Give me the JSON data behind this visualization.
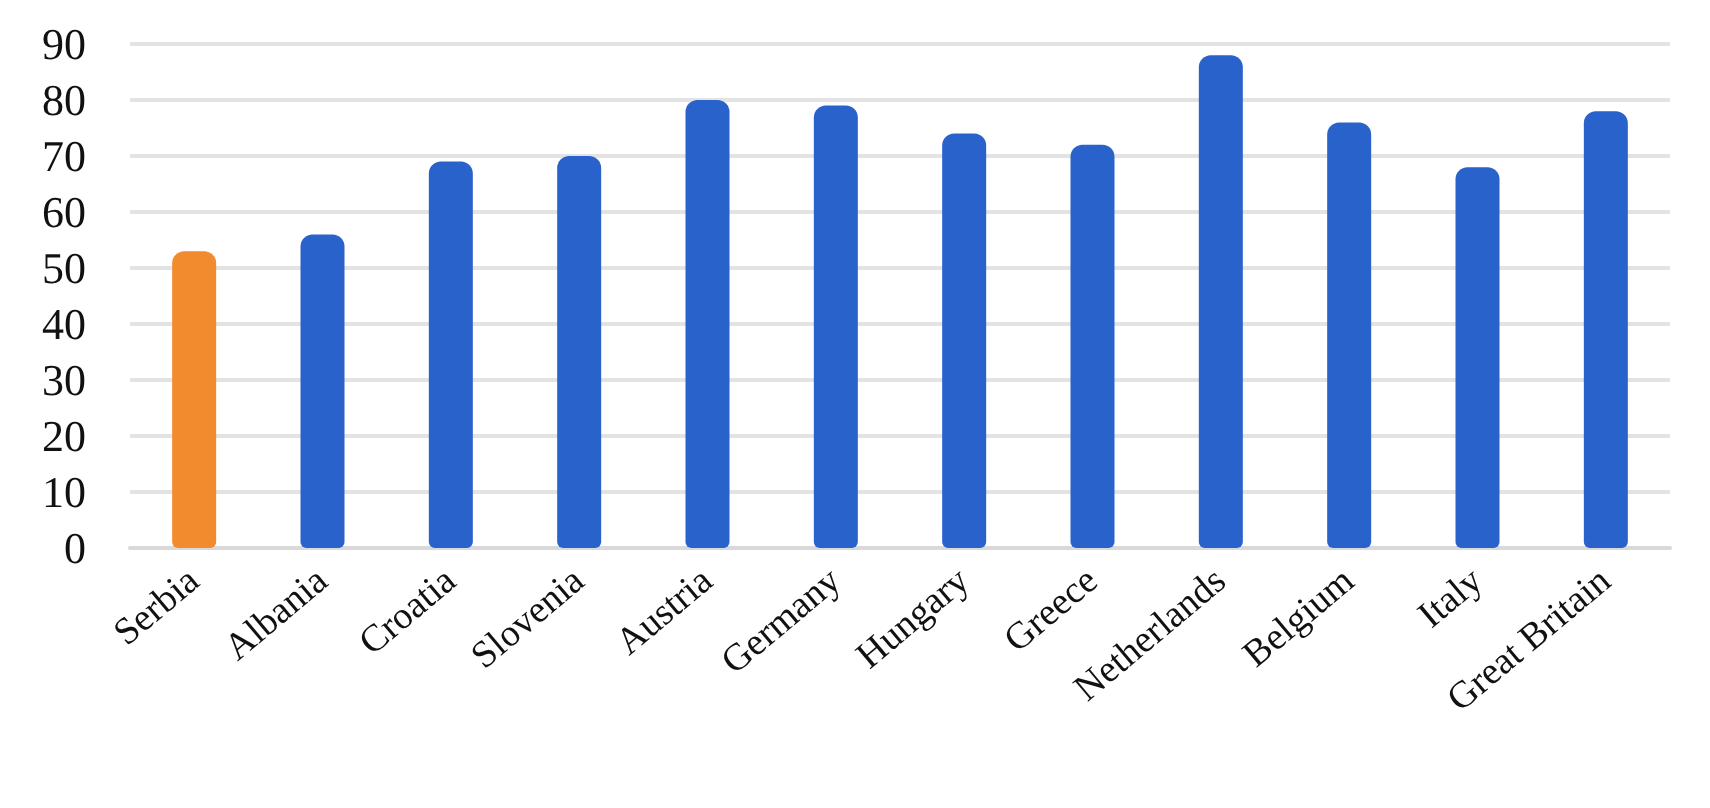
{
  "chart_data": {
    "type": "bar",
    "categories": [
      "Serbia",
      "Albania",
      "Croatia",
      "Slovenia",
      "Austria",
      "Germany",
      "Hungary",
      "Greece",
      "Netherlands",
      "Belgium",
      "Italy",
      "Great Britain"
    ],
    "values": [
      53,
      56,
      69,
      70,
      80,
      79,
      74,
      72,
      88,
      76,
      68,
      78
    ],
    "colors": [
      "#f28a2e",
      "#2a62cc",
      "#2a62cc",
      "#2a62cc",
      "#2a62cc",
      "#2a62cc",
      "#2a62cc",
      "#2a62cc",
      "#2a62cc",
      "#2a62cc",
      "#2a62cc",
      "#2a62cc"
    ],
    "ylim": [
      0,
      90
    ],
    "yticks": [
      0,
      10,
      20,
      30,
      40,
      50,
      60,
      70,
      80,
      90
    ],
    "grid": "y"
  }
}
